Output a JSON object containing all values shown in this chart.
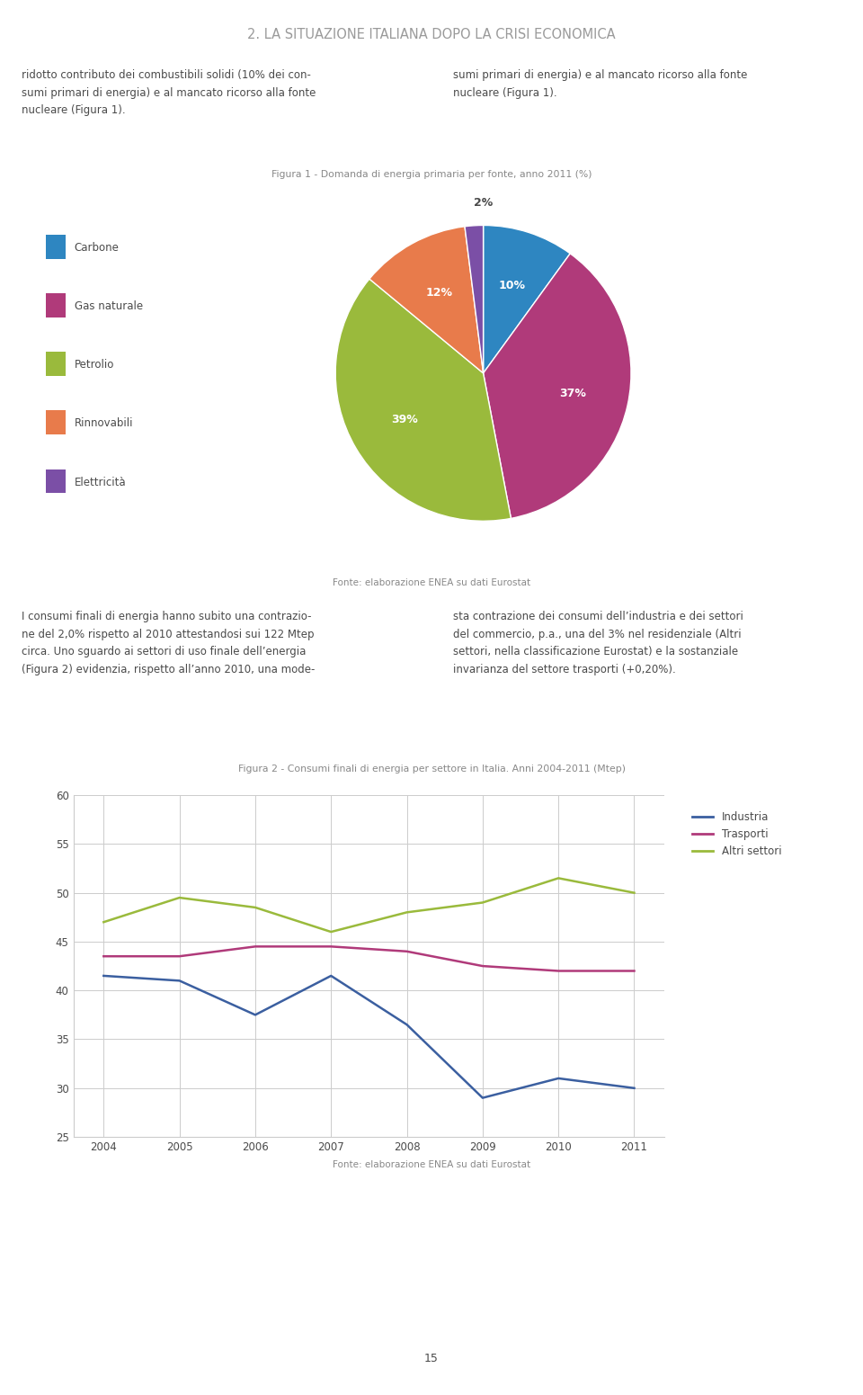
{
  "page_title": "2. LA SITUAZIONE ITALIANA DOPO LA CRISI ECONOMICA",
  "fig1_title": "Figura 1 - Domanda di energia primaria per fonte, anno 2011 (%)",
  "pie_labels": [
    "Carbone",
    "Gas naturale",
    "Petrolio",
    "Rinnovabili",
    "Elettricità"
  ],
  "pie_values": [
    10,
    37,
    39,
    12,
    2
  ],
  "pie_colors": [
    "#2E86C1",
    "#B03A7A",
    "#9ABA3C",
    "#E87B4B",
    "#7B4FA6"
  ],
  "pie_label_texts": [
    "10%",
    "37%",
    "39%",
    "12%",
    "2%"
  ],
  "fig1_source": "Fonte: elaborazione ENEA su dati Eurostat",
  "body_text_left": "I consumi finali di energia hanno subito una contrazio-\nne del 2,0% rispetto al 2010 attestandosi sui 122 Mtep\ncirca. Uno sguardo ai settori di uso finale dell’energia\n(Figura 2) evidenzia, rispetto all’anno 2010, una mode-",
  "body_text_right": "sta contrazione dei consumi dell’industria e dei settori\ndel commercio, p.a., una del 3% nel residenziale (Altri\nsettori, nella classificazione Eurostat) e la sostanziale\ninvarianza del settore trasporti (+0,20%).",
  "top_text_left": "ridotto contributo dei combustibili solidi (10% dei con-\nsumi primari di energia) e al mancato ricorso alla fonte\nnucleare (Figura 1).",
  "top_text_right": "sumi primari di energia) e al mancato ricorso alla fonte\nnucleare (Figura 1).",
  "fig2_title": "Figura 2 - Consumi finali di energia per settore in Italia. Anni 2004-2011 (Mtep)",
  "fig2_years": [
    2004,
    2005,
    2006,
    2007,
    2008,
    2009,
    2010,
    2011
  ],
  "fig2_industria": [
    41.5,
    41.0,
    37.5,
    41.5,
    36.5,
    29.0,
    31.0,
    30.0
  ],
  "fig2_trasporti": [
    43.5,
    43.5,
    44.5,
    44.5,
    44.0,
    42.5,
    42.0,
    42.0
  ],
  "fig2_altri": [
    47.0,
    49.5,
    48.5,
    46.0,
    48.0,
    49.0,
    51.5,
    50.0
  ],
  "fig2_colors": {
    "industria": "#3B5FA0",
    "trasporti": "#B03A7A",
    "altri": "#9ABA3C"
  },
  "fig2_ylim": [
    25,
    60
  ],
  "fig2_yticks": [
    25,
    30,
    35,
    40,
    45,
    50,
    55,
    60
  ],
  "fig2_source": "Fonte: elaborazione ENEA su dati Eurostat",
  "page_number": "15",
  "bg_color": "#FFFFFF",
  "text_color": "#4A4A4A",
  "title_color": "#9A9A9A",
  "source_color": "#888888"
}
